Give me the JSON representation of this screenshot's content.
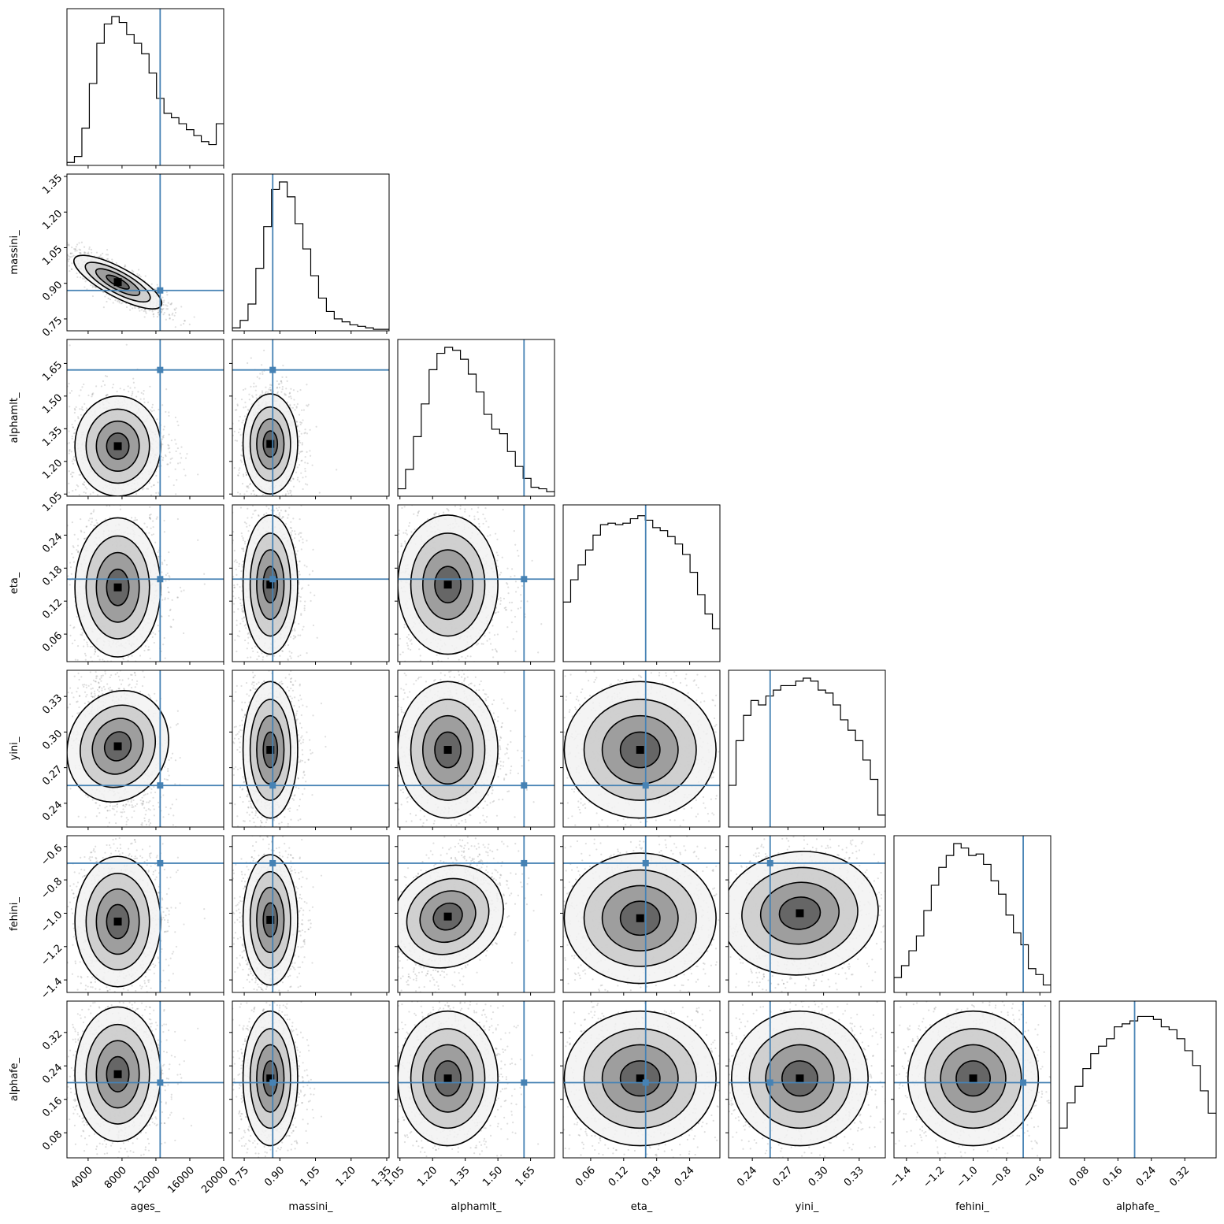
{
  "chart_data": {
    "type": "corner",
    "parameters": [
      "ages_",
      "massini_",
      "alphamlt_",
      "eta_",
      "yini_",
      "fehini_",
      "alphafe_"
    ],
    "ranges": [
      [
        1500,
        20000
      ],
      [
        0.7,
        1.36
      ],
      [
        1.04,
        1.76
      ],
      [
        0.01,
        0.295
      ],
      [
        0.22,
        0.352
      ],
      [
        -1.475,
        -0.535
      ],
      [
        0.02,
        0.395
      ]
    ],
    "ticks": [
      {
        "values": [
          4000,
          8000,
          12000,
          16000,
          20000
        ],
        "labels": [
          "4000",
          "8000",
          "12000",
          "16000",
          "20000"
        ]
      },
      {
        "values": [
          0.75,
          0.9,
          1.05,
          1.2,
          1.35
        ],
        "labels": [
          "0.75",
          "0.90",
          "1.05",
          "1.20",
          "1.35"
        ]
      },
      {
        "values": [
          1.05,
          1.2,
          1.35,
          1.5,
          1.65
        ],
        "labels": [
          "1.05",
          "1.20",
          "1.35",
          "1.50",
          "1.65"
        ]
      },
      {
        "values": [
          0.06,
          0.12,
          0.18,
          0.24
        ],
        "labels": [
          "0.06",
          "0.12",
          "0.18",
          "0.24"
        ]
      },
      {
        "values": [
          0.24,
          0.27,
          0.3,
          0.33
        ],
        "labels": [
          "0.24",
          "0.27",
          "0.30",
          "0.33"
        ]
      },
      {
        "values": [
          -1.4,
          -1.2,
          -1.0,
          -0.8,
          -0.6
        ],
        "labels": [
          "−1.4",
          "−1.2",
          "−1.0",
          "−0.8",
          "−0.6"
        ]
      },
      {
        "values": [
          0.08,
          0.16,
          0.24,
          0.32
        ],
        "labels": [
          "0.08",
          "0.16",
          "0.24",
          "0.32"
        ]
      }
    ],
    "truths": [
      12500,
      0.87,
      1.62,
      0.16,
      0.255,
      -0.7,
      0.2
    ],
    "truth_color": "#4682b4",
    "histograms": [
      [
        0.02,
        0.06,
        0.25,
        0.55,
        0.82,
        0.95,
        1.0,
        0.96,
        0.88,
        0.82,
        0.75,
        0.62,
        0.45,
        0.35,
        0.32,
        0.28,
        0.24,
        0.2,
        0.16,
        0.14,
        0.28
      ],
      [
        0.02,
        0.07,
        0.18,
        0.42,
        0.7,
        0.95,
        1.0,
        0.9,
        0.72,
        0.55,
        0.37,
        0.22,
        0.13,
        0.08,
        0.06,
        0.04,
        0.03,
        0.02,
        0.01,
        0.01
      ],
      [
        0.05,
        0.18,
        0.4,
        0.62,
        0.85,
        0.96,
        1.0,
        0.98,
        0.92,
        0.82,
        0.7,
        0.55,
        0.45,
        0.42,
        0.3,
        0.2,
        0.12,
        0.06,
        0.05,
        0.03
      ],
      [
        0.4,
        0.55,
        0.65,
        0.75,
        0.85,
        0.92,
        0.93,
        0.92,
        0.93,
        0.96,
        0.98,
        0.95,
        0.9,
        0.88,
        0.84,
        0.79,
        0.72,
        0.6,
        0.45,
        0.32,
        0.22
      ],
      [
        0.28,
        0.58,
        0.75,
        0.85,
        0.82,
        0.88,
        0.92,
        0.95,
        0.95,
        0.98,
        1.0,
        0.98,
        0.92,
        0.9,
        0.82,
        0.72,
        0.65,
        0.58,
        0.45,
        0.32,
        0.08
      ],
      [
        0.1,
        0.18,
        0.28,
        0.38,
        0.55,
        0.72,
        0.84,
        0.92,
        1.0,
        0.97,
        0.92,
        0.93,
        0.86,
        0.75,
        0.66,
        0.52,
        0.4,
        0.32,
        0.16,
        0.12,
        0.05
      ],
      [
        0.2,
        0.37,
        0.48,
        0.6,
        0.7,
        0.75,
        0.8,
        0.88,
        0.9,
        0.92,
        0.95,
        0.95,
        0.93,
        0.88,
        0.86,
        0.8,
        0.72,
        0.62,
        0.45,
        0.3
      ]
    ],
    "pairs": [
      {
        "x": 0,
        "y": 1,
        "mode": [
          7500,
          0.905
        ],
        "spread": [
          2200,
          0.05
        ],
        "corr": -0.85
      },
      {
        "x": 0,
        "y": 2,
        "mode": [
          7500,
          1.27
        ],
        "spread": [
          2200,
          0.1
        ],
        "corr": 0.0
      },
      {
        "x": 1,
        "y": 2,
        "mode": [
          0.86,
          1.28
        ],
        "spread": [
          0.05,
          0.1
        ],
        "corr": 0.0
      },
      {
        "x": 0,
        "y": 3,
        "mode": [
          7500,
          0.145
        ],
        "spread": [
          2200,
          0.055
        ],
        "corr": 0.0
      },
      {
        "x": 1,
        "y": 3,
        "mode": [
          0.86,
          0.15
        ],
        "spread": [
          0.05,
          0.055
        ],
        "corr": 0.0
      },
      {
        "x": 2,
        "y": 3,
        "mode": [
          1.27,
          0.15
        ],
        "spread": [
          0.1,
          0.055
        ],
        "corr": 0.0
      },
      {
        "x": 0,
        "y": 4,
        "mode": [
          7500,
          0.288
        ],
        "spread": [
          2200,
          0.025
        ],
        "corr": -0.3
      },
      {
        "x": 1,
        "y": 4,
        "mode": [
          0.86,
          0.285
        ],
        "spread": [
          0.05,
          0.025
        ],
        "corr": 0.0
      },
      {
        "x": 2,
        "y": 4,
        "mode": [
          1.27,
          0.285
        ],
        "spread": [
          0.1,
          0.025
        ],
        "corr": 0.0
      },
      {
        "x": 3,
        "y": 4,
        "mode": [
          0.15,
          0.285
        ],
        "spread": [
          0.06,
          0.025
        ],
        "corr": 0.0
      },
      {
        "x": 0,
        "y": 5,
        "mode": [
          7500,
          -1.05
        ],
        "spread": [
          2200,
          0.17
        ],
        "corr": 0.0
      },
      {
        "x": 1,
        "y": 5,
        "mode": [
          0.86,
          -1.04
        ],
        "spread": [
          0.05,
          0.17
        ],
        "corr": 0.0
      },
      {
        "x": 2,
        "y": 5,
        "mode": [
          1.27,
          -1.02
        ],
        "spread": [
          0.1,
          0.17
        ],
        "corr": 0.45
      },
      {
        "x": 3,
        "y": 5,
        "mode": [
          0.15,
          -1.03
        ],
        "spread": [
          0.06,
          0.17
        ],
        "corr": 0.0
      },
      {
        "x": 4,
        "y": 5,
        "mode": [
          0.28,
          -1.0
        ],
        "spread": [
          0.025,
          0.17
        ],
        "corr": 0.1
      },
      {
        "x": 0,
        "y": 6,
        "mode": [
          7500,
          0.22
        ],
        "spread": [
          2200,
          0.07
        ],
        "corr": 0.0
      },
      {
        "x": 1,
        "y": 6,
        "mode": [
          0.86,
          0.21
        ],
        "spread": [
          0.05,
          0.07
        ],
        "corr": 0.0
      },
      {
        "x": 2,
        "y": 6,
        "mode": [
          1.27,
          0.21
        ],
        "spread": [
          0.1,
          0.07
        ],
        "corr": 0.0
      },
      {
        "x": 3,
        "y": 6,
        "mode": [
          0.15,
          0.21
        ],
        "spread": [
          0.06,
          0.07
        ],
        "corr": 0.0
      },
      {
        "x": 4,
        "y": 6,
        "mode": [
          0.28,
          0.21
        ],
        "spread": [
          0.025,
          0.07
        ],
        "corr": 0.0
      },
      {
        "x": 5,
        "y": 6,
        "mode": [
          -1.0,
          0.21
        ],
        "spread": [
          0.17,
          0.07
        ],
        "corr": 0.0
      }
    ]
  }
}
